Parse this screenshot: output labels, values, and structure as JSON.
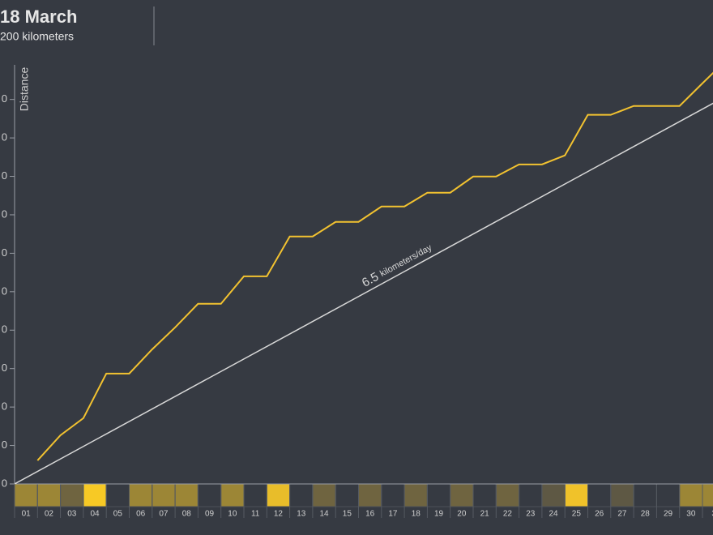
{
  "chart_data": {
    "type": "line",
    "title": "18 March",
    "subtitle": "200 kilometers",
    "y_label": "Distance",
    "categories": [
      "01",
      "02",
      "03",
      "04",
      "05",
      "06",
      "07",
      "08",
      "09",
      "10",
      "11",
      "12",
      "13",
      "14",
      "15",
      "16",
      "17",
      "18",
      "19",
      "20",
      "21",
      "22",
      "23",
      "24",
      "25",
      "26",
      "27",
      "28",
      "29",
      "30",
      "3"
    ],
    "series": [
      {
        "name": "Distance",
        "color": "#f2c230",
        "values": [
          12.2,
          25.3,
          34.2,
          57.4,
          57.4,
          70,
          81.4,
          93.7,
          93.7,
          108,
          108,
          128.7,
          128.7,
          136.3,
          136.3,
          144.3,
          144.3,
          151.5,
          151.5,
          159.9,
          159.9,
          166.2,
          166.2,
          170.9,
          192,
          192,
          196.6,
          196.6,
          196.6,
          208.4,
          220
        ]
      }
    ],
    "day_colors": [
      "#9c8636",
      "#9c8636",
      "#6f6440",
      "#f7c925",
      null,
      "#9c8636",
      "#9c8636",
      "#9c8636",
      null,
      "#9c8636",
      null,
      "#e8bd2a",
      null,
      "#6f6440",
      null,
      "#6f6440",
      null,
      "#6f6440",
      null,
      "#6f6440",
      null,
      "#6f6440",
      null,
      "#5e5844",
      "#f0c22a",
      null,
      "#5e5844",
      null,
      null,
      "#9c8636",
      "#9c8636"
    ],
    "reference": {
      "rate": 6.5,
      "unit": "kilometers/day",
      "color": "#d8d8d8"
    },
    "ylim": [
      0,
      218
    ],
    "yticks": [
      {
        "value": 0,
        "label": "0"
      },
      {
        "value": 20,
        "label": "0"
      },
      {
        "value": 40,
        "label": "0"
      },
      {
        "value": 60,
        "label": "0"
      },
      {
        "value": 80,
        "label": "0"
      },
      {
        "value": 100,
        "label": "0"
      },
      {
        "value": 120,
        "label": "0"
      },
      {
        "value": 140,
        "label": "0"
      },
      {
        "value": 160,
        "label": "0"
      },
      {
        "value": 180,
        "label": "0"
      },
      {
        "value": 200,
        "label": "0"
      }
    ]
  }
}
